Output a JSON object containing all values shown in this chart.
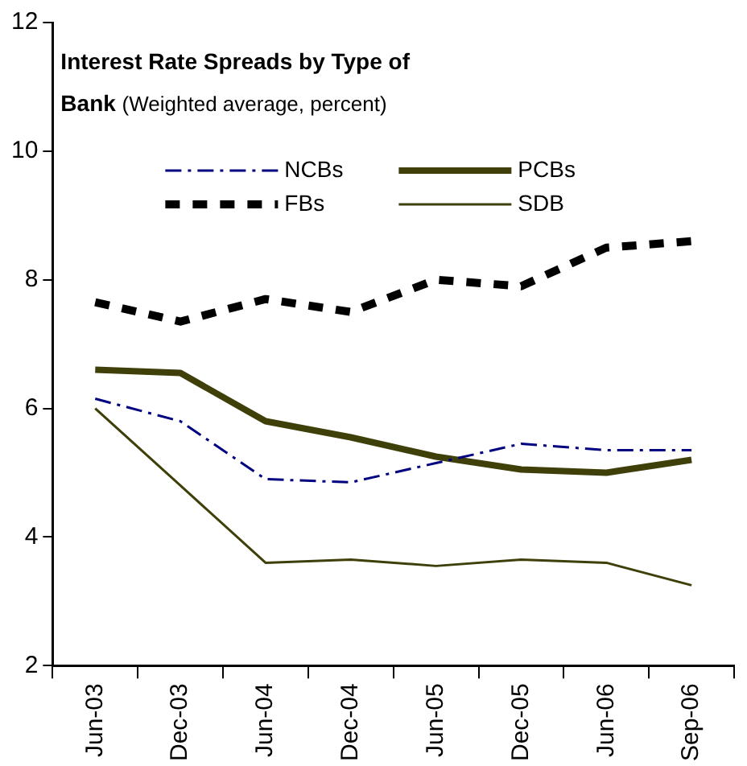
{
  "chart_data": {
    "type": "line",
    "title": "Interest Rate Spreads by Type of Bank",
    "subtitle": "(Weighted average, percent)",
    "categories": [
      "Jun-03",
      "Dec-03",
      "Jun-04",
      "Dec-04",
      "Jun-05",
      "Dec-05",
      "Jun-06",
      "Sep-06"
    ],
    "series": [
      {
        "name": "NCBs",
        "color": "#000080",
        "line_style": "dashed",
        "values": [
          6.15,
          5.8,
          4.9,
          4.85,
          5.15,
          5.45,
          5.35,
          5.35
        ]
      },
      {
        "name": "PCBs",
        "color": "#3f3f0a",
        "line_style": "solid",
        "values": [
          6.6,
          6.55,
          5.8,
          5.55,
          5.25,
          5.05,
          5.0,
          5.2
        ]
      },
      {
        "name": "FBs",
        "color": "#000000",
        "line_style": "dashed",
        "values": [
          7.65,
          7.35,
          7.7,
          7.5,
          8.0,
          7.9,
          8.5,
          8.6
        ]
      },
      {
        "name": "SDB",
        "color": "#3f3f0a",
        "line_style": "solid",
        "values": [
          6.0,
          4.8,
          3.6,
          3.65,
          3.55,
          3.65,
          3.6,
          3.25
        ]
      }
    ],
    "ylim": [
      2,
      12
    ],
    "yticks": [
      2,
      4,
      6,
      8,
      10,
      12
    ],
    "grid": false,
    "legend": "top",
    "marker": "none"
  }
}
